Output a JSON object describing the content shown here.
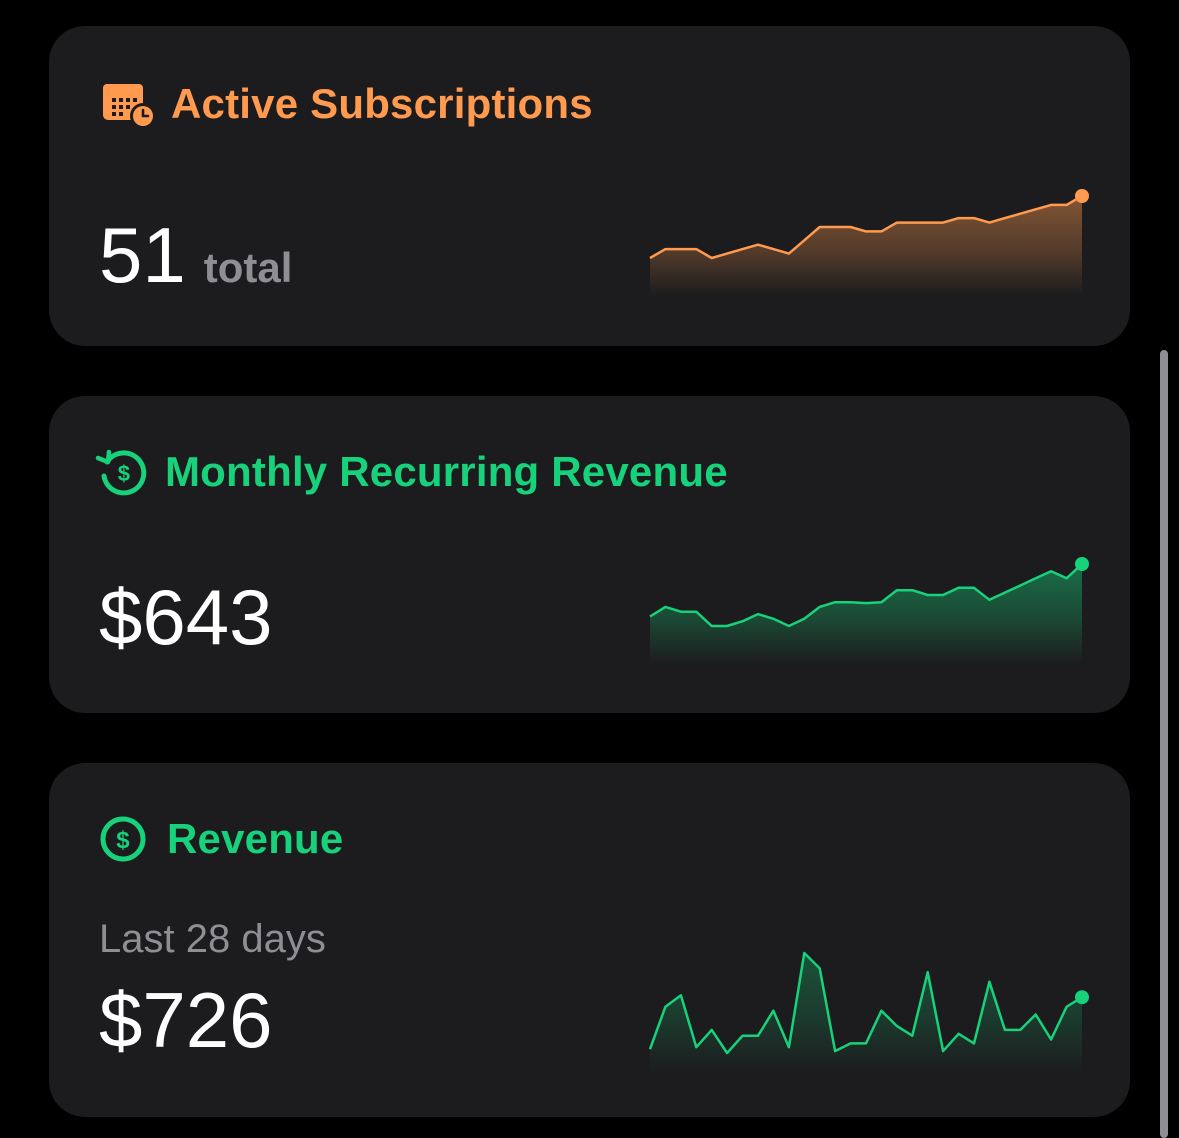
{
  "colors": {
    "subscriptions": "#ff9a4f",
    "mrr": "#17d27a",
    "revenue": "#17d27a"
  },
  "cards": {
    "subscriptions": {
      "title": "Active Subscriptions",
      "icon": "calendar-clock-icon",
      "value": "51",
      "unit": "total"
    },
    "mrr": {
      "title": "Monthly Recurring Revenue",
      "icon": "recurring-dollar-icon",
      "value": "$643"
    },
    "revenue": {
      "title": "Revenue",
      "icon": "dollar-circle-icon",
      "caption": "Last 28 days",
      "value": "$726"
    }
  },
  "chart_data": [
    {
      "type": "area",
      "series": [
        {
          "values": [
            41,
            42,
            42,
            42,
            41,
            41.5,
            42,
            42.5,
            42,
            41.5,
            43,
            44.5,
            44.5,
            44.5,
            44,
            44,
            45,
            45,
            45,
            45,
            45.5,
            45.5,
            45,
            45.5,
            46,
            46.5,
            47,
            47,
            48
          ]
        }
      ]
    },
    {
      "type": "area",
      "series": [
        {
          "values": [
            540,
            560,
            550,
            550,
            520,
            520,
            530,
            545,
            535,
            520,
            535,
            560,
            570,
            570,
            568,
            570,
            595,
            595,
            585,
            585,
            600,
            600,
            575,
            590,
            605,
            620,
            635,
            620,
            650
          ]
        }
      ]
    },
    {
      "type": "area",
      "series": [
        {
          "values": [
            10,
            32,
            38,
            11,
            20,
            8,
            17,
            17,
            30,
            11,
            60,
            52,
            9,
            13,
            13,
            30,
            22,
            17,
            50,
            9,
            18,
            13,
            45,
            20,
            20,
            28,
            15,
            32,
            37
          ]
        }
      ]
    }
  ]
}
